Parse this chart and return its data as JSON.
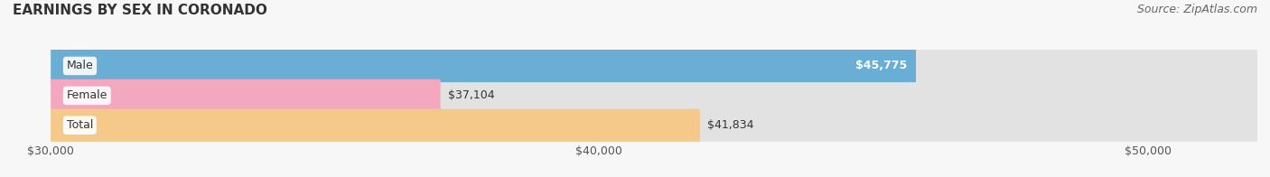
{
  "title": "EARNINGS BY SEX IN CORONADO",
  "source": "Source: ZipAtlas.com",
  "categories": [
    "Male",
    "Female",
    "Total"
  ],
  "values": [
    45775,
    37104,
    41834
  ],
  "bar_colors": [
    "#6aaed6",
    "#f4a8c0",
    "#f5c98a"
  ],
  "bar_bg_color": "#e2e2e2",
  "label_colors": [
    "white",
    "#555555",
    "#555555"
  ],
  "xmin": 30000,
  "xmax": 52000,
  "xticks": [
    30000,
    40000,
    50000
  ],
  "xtick_labels": [
    "$30,000",
    "$40,000",
    "$50,000"
  ],
  "value_labels": [
    "$45,775",
    "$37,104",
    "$41,834"
  ],
  "background_color": "#f7f7f7",
  "title_fontsize": 11,
  "bar_label_fontsize": 9,
  "tick_fontsize": 9,
  "category_fontsize": 9,
  "bar_height": 0.55,
  "figwidth": 14.06,
  "figheight": 1.96
}
